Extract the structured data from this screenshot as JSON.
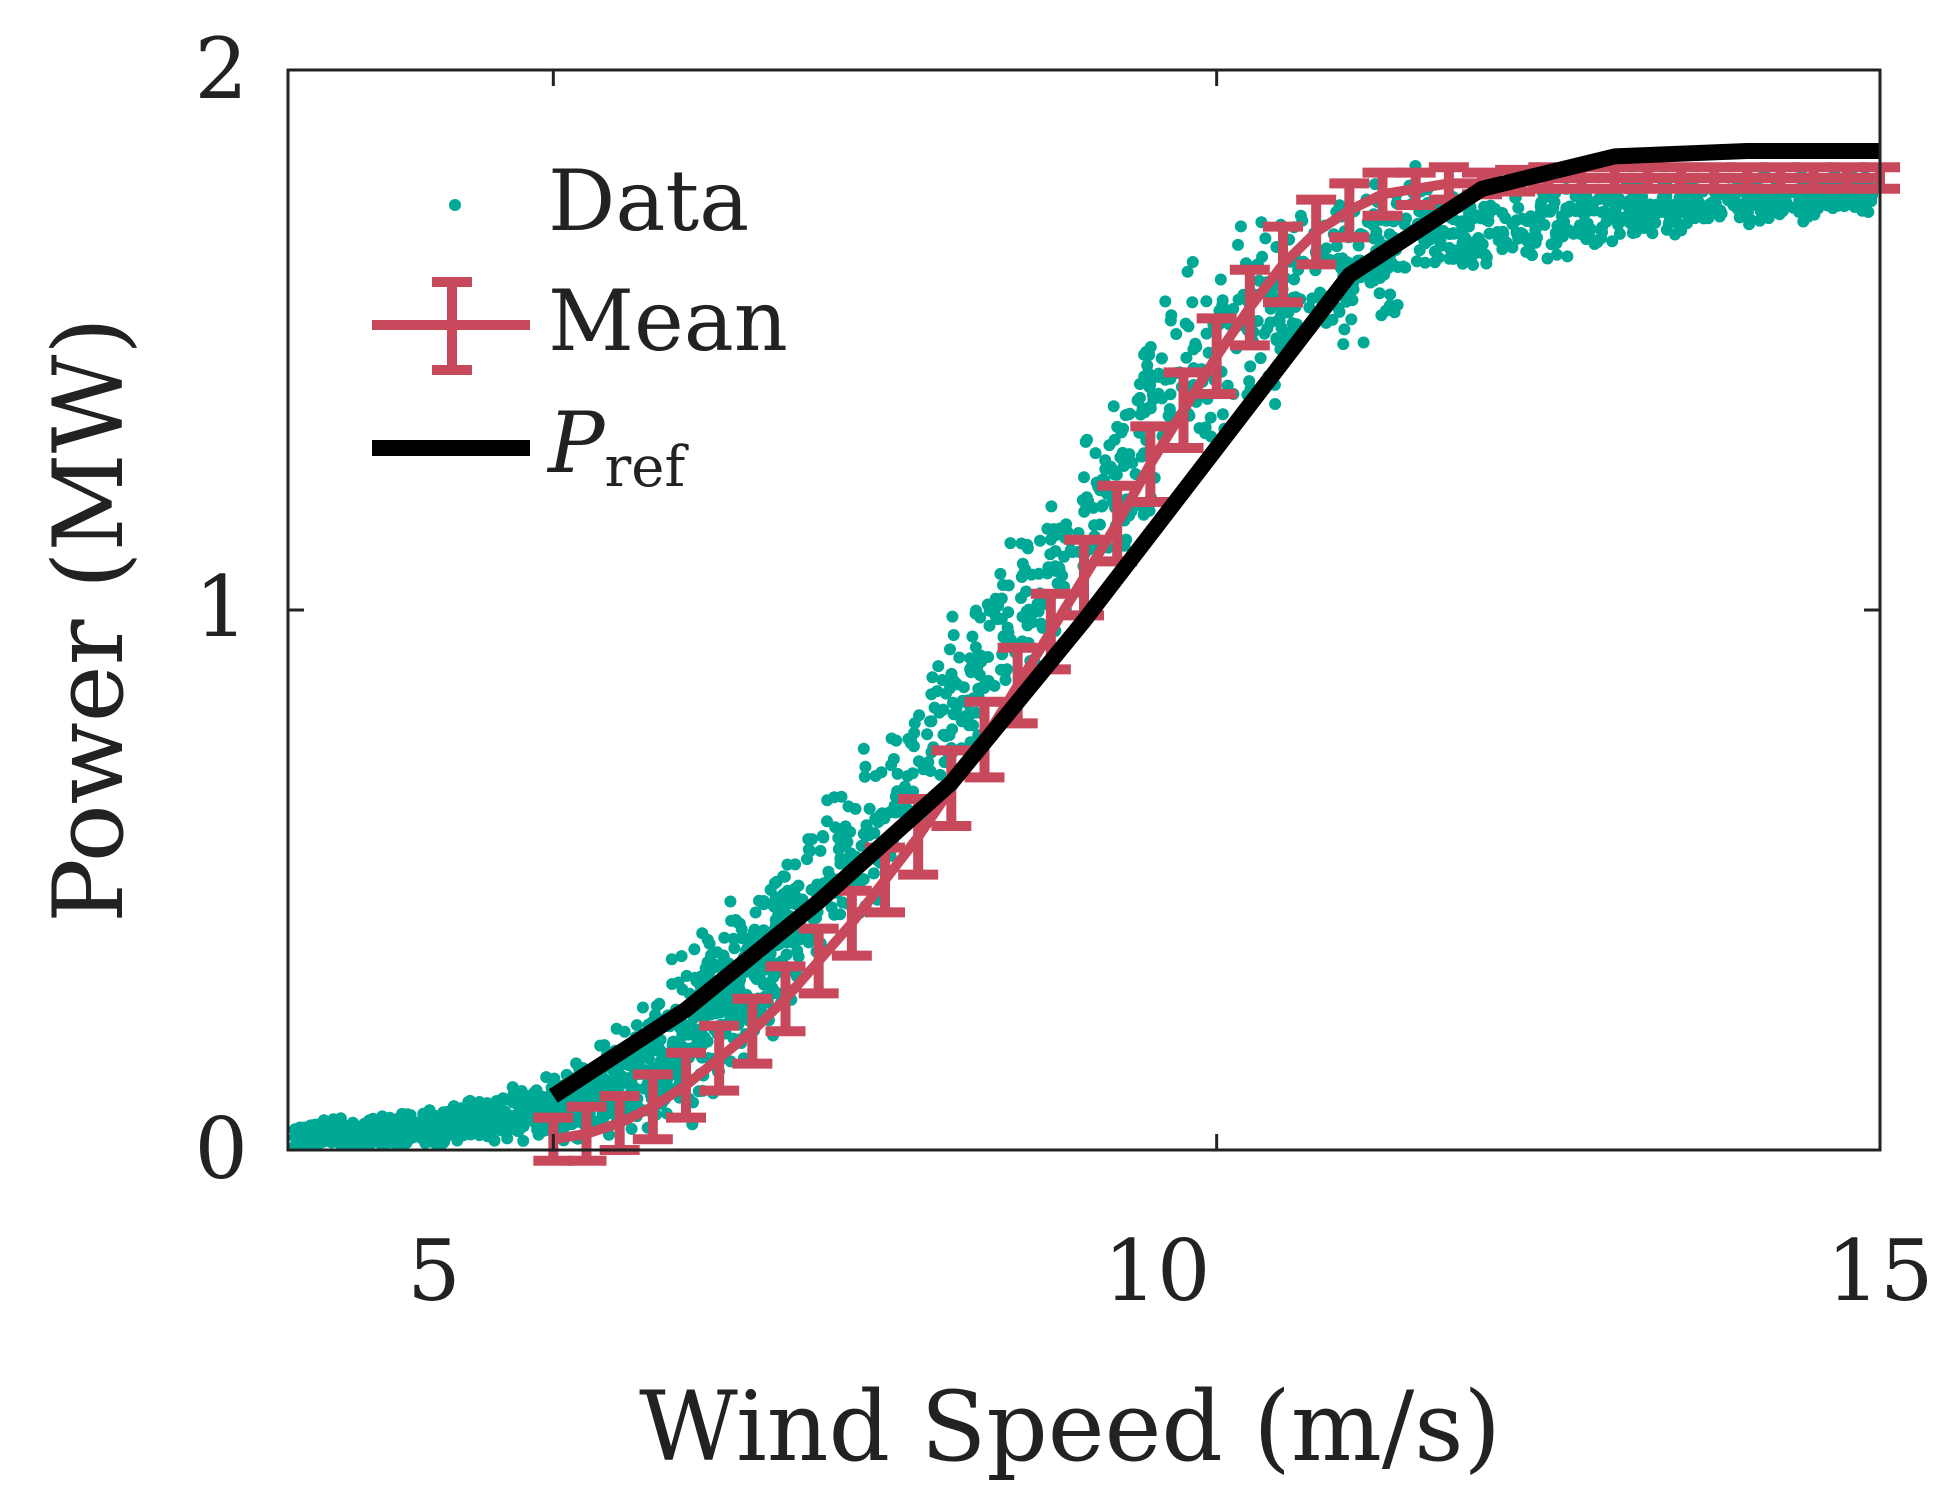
{
  "chart_data": {
    "type": "scatter",
    "title": "",
    "xlabel": "Wind Speed (m/s)",
    "ylabel": "Power (MW)",
    "xlim": [
      3,
      15
    ],
    "ylim": [
      0,
      2
    ],
    "xticks": [
      5,
      10,
      15
    ],
    "yticks": [
      0,
      1,
      2
    ],
    "xtick_labels": [
      "5",
      "10",
      "15"
    ],
    "ytick_labels": [
      "0",
      "1",
      "2"
    ],
    "grid": false,
    "legend_position": "top-left",
    "legend": {
      "data": "Data",
      "mean": "Mean",
      "pref_main": "P",
      "pref_sub": "ref"
    },
    "colors": {
      "data": "#00a896",
      "mean": "#c8485c",
      "pref": "#000000",
      "axis": "#222222"
    },
    "series": [
      {
        "name": "Data",
        "kind": "scatter",
        "description_points": "approximately 9000 measured samples scattered around the power curve",
        "envelope": {
          "x": [
            3.0,
            4.0,
            5.0,
            5.5,
            6.0,
            6.5,
            7.0,
            7.5,
            8.0,
            8.5,
            9.0,
            9.5,
            10.0,
            10.5,
            11.0,
            11.5,
            12.0,
            13.0,
            14.0,
            15.0
          ],
          "lower": [
            0.0,
            0.0,
            0.0,
            0.0,
            0.0,
            0.12,
            0.3,
            0.45,
            0.62,
            0.8,
            0.95,
            1.1,
            1.2,
            1.35,
            1.45,
            1.55,
            1.6,
            1.65,
            1.7,
            1.72
          ],
          "upper": [
            0.05,
            0.08,
            0.15,
            0.25,
            0.4,
            0.55,
            0.68,
            0.82,
            1.0,
            1.18,
            1.38,
            1.58,
            1.75,
            1.82,
            1.83,
            1.83,
            1.82,
            1.82,
            1.82,
            1.82
          ]
        }
      },
      {
        "name": "Mean",
        "kind": "errorbar",
        "x": [
          5.0,
          5.25,
          5.5,
          5.75,
          6.0,
          6.25,
          6.5,
          6.75,
          7.0,
          7.25,
          7.5,
          7.75,
          8.0,
          8.25,
          8.5,
          8.75,
          9.0,
          9.25,
          9.5,
          9.75,
          10.0,
          10.25,
          10.5,
          10.75,
          11.0,
          11.25,
          11.5,
          11.75,
          12.0,
          12.25,
          12.5,
          12.75,
          13.0,
          13.25,
          13.5,
          13.75,
          14.0,
          14.25,
          14.5,
          14.75,
          15.0
        ],
        "y": [
          0.02,
          0.03,
          0.05,
          0.08,
          0.12,
          0.17,
          0.22,
          0.28,
          0.35,
          0.42,
          0.5,
          0.58,
          0.67,
          0.76,
          0.86,
          0.96,
          1.06,
          1.16,
          1.27,
          1.37,
          1.47,
          1.56,
          1.64,
          1.7,
          1.74,
          1.77,
          1.78,
          1.79,
          1.79,
          1.795,
          1.8,
          1.8,
          1.8,
          1.8,
          1.8,
          1.8,
          1.8,
          1.8,
          1.8,
          1.8,
          1.8
        ],
        "err": [
          0.04,
          0.05,
          0.05,
          0.06,
          0.06,
          0.06,
          0.06,
          0.06,
          0.06,
          0.06,
          0.06,
          0.07,
          0.07,
          0.07,
          0.07,
          0.07,
          0.07,
          0.07,
          0.07,
          0.07,
          0.07,
          0.07,
          0.07,
          0.06,
          0.05,
          0.04,
          0.03,
          0.03,
          0.02,
          0.02,
          0.02,
          0.02,
          0.02,
          0.02,
          0.02,
          0.02,
          0.02,
          0.02,
          0.02,
          0.02,
          0.02
        ]
      },
      {
        "name": "Pref",
        "kind": "line",
        "x": [
          5,
          6,
          7,
          8,
          9,
          10,
          11,
          12,
          13,
          14,
          15
        ],
        "y": [
          0.1,
          0.26,
          0.46,
          0.68,
          0.98,
          1.3,
          1.62,
          1.78,
          1.84,
          1.85,
          1.85
        ]
      }
    ]
  }
}
